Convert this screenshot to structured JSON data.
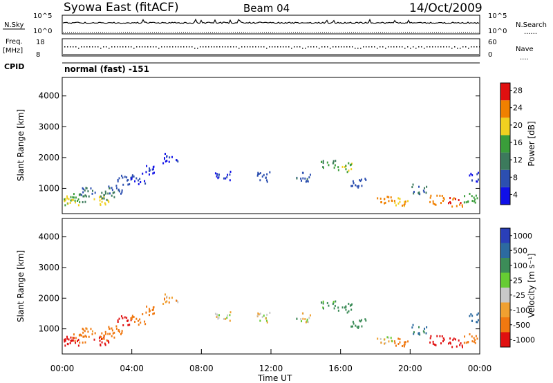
{
  "header": {
    "station": "Syowa East (fitACF)",
    "beam": "Beam 04",
    "date": "14/Oct/2009"
  },
  "status_panels": {
    "nsky": {
      "left_label": "N.Sky",
      "left_ticks": [
        "10^5",
        "10^0"
      ],
      "right_ticks": [
        "10^5",
        "10^0"
      ],
      "right_label": "N.Search",
      "right_legend_line": "......"
    },
    "freq": {
      "left_label": "Freq.",
      "left_unit": "[MHz]",
      "left_ticks": [
        "18",
        "8"
      ],
      "right_ticks": [
        "60",
        "0"
      ],
      "right_label": "Nave",
      "right_legend_line": "...."
    },
    "cpid": {
      "label": "CPID",
      "text": "normal (fast) -151"
    }
  },
  "axes": {
    "x_ticks": [
      "00:00",
      "04:00",
      "08:00",
      "12:00",
      "16:00",
      "20:00",
      "00:00"
    ],
    "x_label": "Time UT",
    "y_label": "Slant Range [km]",
    "y_ticks": [
      "1000",
      "2000",
      "3000",
      "4000"
    ]
  },
  "colorbars": {
    "power": {
      "label": "Power [dB]",
      "ticks": [
        "4",
        "8",
        "12",
        "16",
        "20",
        "24",
        "28"
      ],
      "colors": [
        "#1010e8",
        "#2c4fb0",
        "#3c7a5c",
        "#3a9d3a",
        "#f0d020",
        "#f08000",
        "#e01010"
      ]
    },
    "velocity": {
      "label": "Velocity [m s⁻¹]",
      "ticks": [
        "1000",
        "500",
        "100",
        "25",
        "-25",
        "-100",
        "-500",
        "-1000"
      ],
      "colors": [
        "#2a3fb8",
        "#2c6aa0",
        "#3c8c58",
        "#66cc33",
        "#c8c8c8",
        "#f0a030",
        "#f07810",
        "#e01010"
      ]
    }
  },
  "chart_data": [
    {
      "type": "heatmap",
      "name": "power",
      "x_range_hours": [
        0,
        24
      ],
      "y_range_km": [
        180,
        4600
      ],
      "value_unit": "dB",
      "cells": [
        {
          "t": 0.1,
          "r": 640,
          "v": 22
        },
        {
          "t": 0.5,
          "r": 620,
          "v": 18
        },
        {
          "t": 1.0,
          "r": 700,
          "v": 14
        },
        {
          "t": 1.5,
          "r": 900,
          "v": 10
        },
        {
          "t": 2.2,
          "r": 640,
          "v": 20
        },
        {
          "t": 2.6,
          "r": 780,
          "v": 12
        },
        {
          "t": 3.0,
          "r": 1000,
          "v": 9
        },
        {
          "t": 3.6,
          "r": 1300,
          "v": 8
        },
        {
          "t": 4.3,
          "r": 1300,
          "v": 7
        },
        {
          "t": 5.0,
          "r": 1600,
          "v": 6
        },
        {
          "t": 6.2,
          "r": 2000,
          "v": 5
        },
        {
          "t": 9.2,
          "r": 1420,
          "v": 6
        },
        {
          "t": 11.5,
          "r": 1400,
          "v": 8
        },
        {
          "t": 13.8,
          "r": 1400,
          "v": 9
        },
        {
          "t": 15.3,
          "r": 1800,
          "v": 14
        },
        {
          "t": 16.2,
          "r": 1700,
          "v": 18
        },
        {
          "t": 17.0,
          "r": 1200,
          "v": 8
        },
        {
          "t": 18.5,
          "r": 620,
          "v": 24
        },
        {
          "t": 19.5,
          "r": 600,
          "v": 22
        },
        {
          "t": 20.5,
          "r": 1000,
          "v": 10
        },
        {
          "t": 21.5,
          "r": 640,
          "v": 24
        },
        {
          "t": 22.6,
          "r": 580,
          "v": 26
        },
        {
          "t": 23.4,
          "r": 700,
          "v": 16
        },
        {
          "t": 23.8,
          "r": 1400,
          "v": 6
        }
      ]
    },
    {
      "type": "heatmap",
      "name": "velocity",
      "x_range_hours": [
        0,
        24
      ],
      "y_range_km": [
        180,
        4600
      ],
      "value_unit": "m s-1",
      "cells": [
        {
          "t": 0.1,
          "r": 640,
          "v": -300
        },
        {
          "t": 0.5,
          "r": 620,
          "v": -500
        },
        {
          "t": 1.0,
          "r": 700,
          "v": -200
        },
        {
          "t": 1.5,
          "r": 900,
          "v": -100
        },
        {
          "t": 2.2,
          "r": 640,
          "v": -400
        },
        {
          "t": 2.6,
          "r": 780,
          "v": -150
        },
        {
          "t": 3.0,
          "r": 1000,
          "v": -200
        },
        {
          "t": 3.6,
          "r": 1300,
          "v": -600
        },
        {
          "t": 4.3,
          "r": 1300,
          "v": -150
        },
        {
          "t": 5.0,
          "r": 1600,
          "v": -100
        },
        {
          "t": 6.2,
          "r": 2000,
          "v": -60
        },
        {
          "t": 9.2,
          "r": 1420,
          "v": 0
        },
        {
          "t": 11.5,
          "r": 1400,
          "v": 0
        },
        {
          "t": 13.8,
          "r": 1400,
          "v": 10
        },
        {
          "t": 15.3,
          "r": 1800,
          "v": 100
        },
        {
          "t": 16.2,
          "r": 1700,
          "v": 200
        },
        {
          "t": 17.0,
          "r": 1200,
          "v": 150
        },
        {
          "t": 18.5,
          "r": 620,
          "v": 0
        },
        {
          "t": 19.5,
          "r": 600,
          "v": -200
        },
        {
          "t": 20.5,
          "r": 1000,
          "v": 300
        },
        {
          "t": 21.5,
          "r": 640,
          "v": -400
        },
        {
          "t": 22.6,
          "r": 580,
          "v": -500
        },
        {
          "t": 23.4,
          "r": 700,
          "v": -150
        },
        {
          "t": 23.8,
          "r": 1400,
          "v": 500
        }
      ]
    }
  ]
}
